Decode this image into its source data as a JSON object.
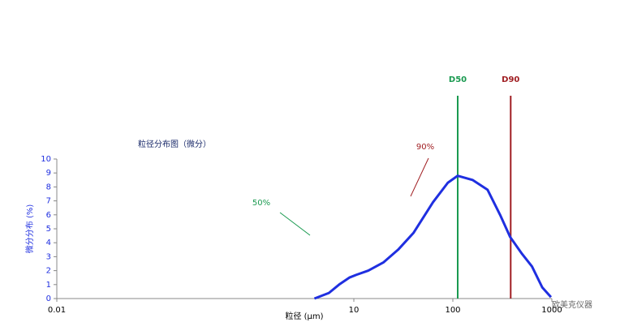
{
  "chart_data": {
    "type": "line",
    "title": "粒径分布图（微分）",
    "x_label": "粒径 (μm)",
    "y_label": "微分分布 (%)",
    "x": [
      4,
      5.6,
      7.1,
      9,
      10.6,
      14,
      20,
      28,
      40,
      63,
      89,
      112,
      158,
      224,
      300,
      380,
      500,
      630,
      800,
      980
    ],
    "series": [
      {
        "name": "微分分布",
        "color": "#1f2fe0",
        "values": [
          0,
          0.4,
          1.0,
          1.5,
          1.7,
          2.0,
          2.6,
          3.5,
          4.7,
          6.9,
          8.3,
          8.8,
          8.5,
          7.8,
          6.0,
          4.4,
          3.2,
          2.3,
          0.8,
          0.1
        ]
      }
    ],
    "xlim": [
      0.01,
      1000
    ],
    "x_log": true,
    "xticks": [
      0.01,
      10,
      100,
      1000
    ],
    "ylim": [
      0,
      10
    ],
    "yticks": [
      0,
      1,
      2,
      3,
      4,
      5,
      6,
      7,
      8,
      9,
      10
    ],
    "markers": [
      {
        "label": "D50",
        "x": 112,
        "color": "#1a9a50",
        "annotation": "50%"
      },
      {
        "label": "D90",
        "x": 384,
        "color": "#a01e22",
        "annotation": "90%"
      }
    ],
    "watermark": "欧美克仪器"
  }
}
